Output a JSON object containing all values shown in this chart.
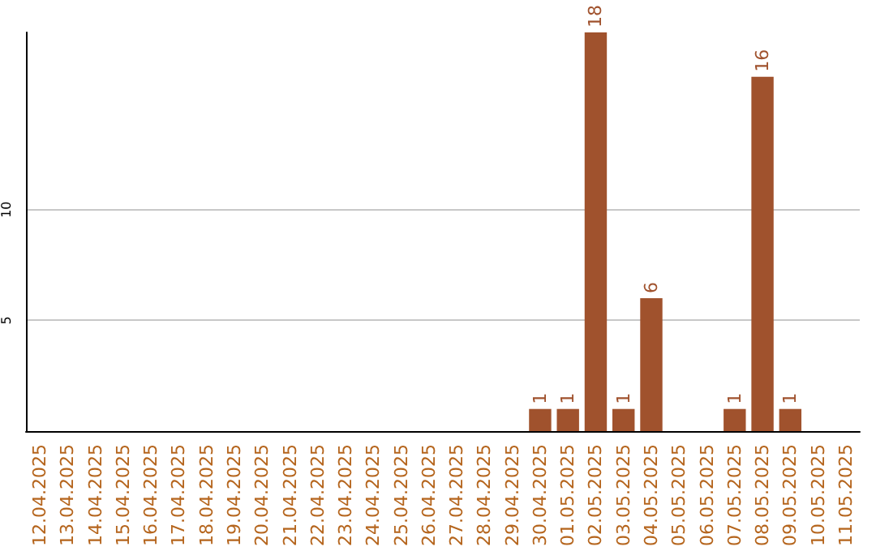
{
  "chart_data": {
    "type": "bar",
    "categories": [
      "12.04.2025",
      "13.04.2025",
      "14.04.2025",
      "15.04.2025",
      "16.04.2025",
      "17.04.2025",
      "18.04.2025",
      "19.04.2025",
      "20.04.2025",
      "21.04.2025",
      "22.04.2025",
      "23.04.2025",
      "24.04.2025",
      "25.04.2025",
      "26.04.2025",
      "27.04.2025",
      "28.04.2025",
      "29.04.2025",
      "30.04.2025",
      "01.05.2025",
      "02.05.2025",
      "03.05.2025",
      "04.05.2025",
      "05.05.2025",
      "06.05.2025",
      "07.05.2025",
      "08.05.2025",
      "09.05.2025",
      "10.05.2025",
      "11.05.2025"
    ],
    "values": [
      0,
      0,
      0,
      0,
      0,
      0,
      0,
      0,
      0,
      0,
      0,
      0,
      0,
      0,
      0,
      0,
      0,
      0,
      1,
      1,
      18,
      1,
      6,
      0,
      0,
      1,
      16,
      1,
      0,
      0
    ],
    "value_labels": [
      null,
      null,
      null,
      null,
      null,
      null,
      null,
      null,
      null,
      null,
      null,
      null,
      null,
      null,
      null,
      null,
      null,
      null,
      "1",
      "1",
      "18",
      "1",
      "6",
      null,
      null,
      "1",
      "16",
      "1",
      null,
      null
    ],
    "color": "#a0522d",
    "ylim": [
      0,
      18
    ],
    "yticks": [
      5,
      10
    ],
    "grid": "y"
  }
}
